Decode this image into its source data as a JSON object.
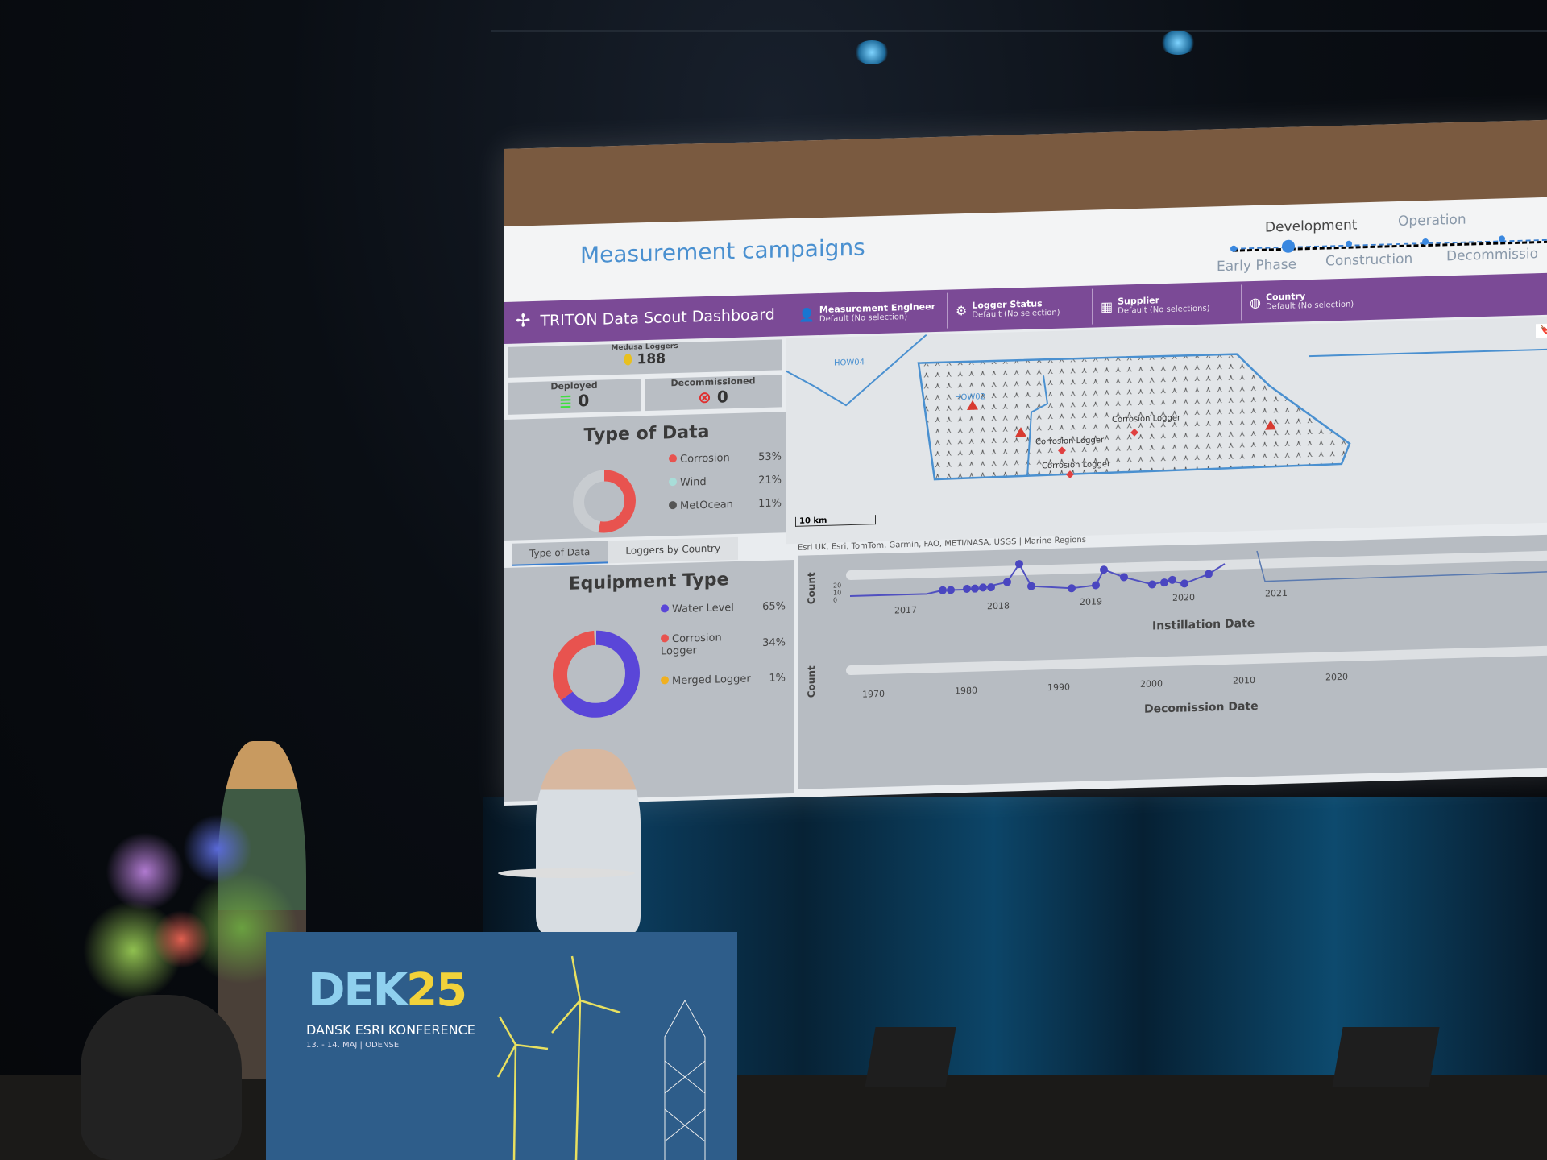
{
  "dashboard": {
    "page_title": "Measurement campaigns",
    "phases": {
      "top": [
        "Development",
        "Operation"
      ],
      "bottom": [
        "Early Phase",
        "Construction",
        "Decommissio"
      ],
      "active": "Development"
    },
    "app_title": "TRITON Data Scout Dashboard",
    "filters": [
      {
        "label": "Measurement Engineer",
        "value": "Default (No selection)",
        "icon": "person-icon"
      },
      {
        "label": "Logger Status",
        "value": "Default (No selection)",
        "icon": "gear-icon"
      },
      {
        "label": "Supplier",
        "value": "Default (No selections)",
        "icon": "building-icon"
      },
      {
        "label": "Country",
        "value": "Default (No selection)",
        "icon": "globe-icon"
      }
    ],
    "kpis": {
      "medusa": {
        "label": "Medusa Loggers",
        "value": "188"
      },
      "deployed": {
        "label": "Deployed",
        "value": "0"
      },
      "decommissioned": {
        "label": "Decommissioned",
        "value": "0"
      }
    },
    "type_of_data": {
      "title": "Type of Data",
      "items": [
        {
          "name": "Corrosion",
          "pct": "53%",
          "color": "#e8534f"
        },
        {
          "name": "Wind",
          "pct": "21%",
          "color": "#a8ddd8"
        },
        {
          "name": "MetOcean",
          "pct": "11%",
          "color": "#555555"
        }
      ],
      "tabs": [
        "Type of Data",
        "Loggers by Country"
      ]
    },
    "equipment_type": {
      "title": "Equipment Type",
      "items": [
        {
          "name": "Water Level",
          "pct": "65%",
          "color": "#5a46d8"
        },
        {
          "name": "Corrosion Logger",
          "pct": "34%",
          "color": "#e8534f"
        },
        {
          "name": "Merged Logger",
          "pct": "1%",
          "color": "#f0b020"
        }
      ]
    },
    "map": {
      "labels": [
        "HOW04",
        "HOW02",
        "Corrosion Logger",
        "Corrosion Logger",
        "Corrosion Logger"
      ],
      "scale": "10 km",
      "attribution": "Esri UK, Esri, TomTom, Garmin, FAO, METI/NASA, USGS | Marine Regions"
    },
    "install_chart": {
      "ylabel": "Count",
      "yticks": [
        "20",
        "10",
        "0"
      ],
      "xticks": [
        "2017",
        "2018",
        "2019",
        "2020",
        "2021"
      ],
      "xlabel": "Instillation Date"
    },
    "decom_chart": {
      "ylabel": "Count",
      "xticks": [
        "1970",
        "1980",
        "1990",
        "2000",
        "2010",
        "2020"
      ],
      "xlabel": "Decomission Date"
    }
  },
  "podium": {
    "logo_a": "DEK",
    "logo_b": "25",
    "subtitle": "DANSK ESRI KONFERENCE",
    "date": "13. - 14. MAJ | ODENSE"
  }
}
